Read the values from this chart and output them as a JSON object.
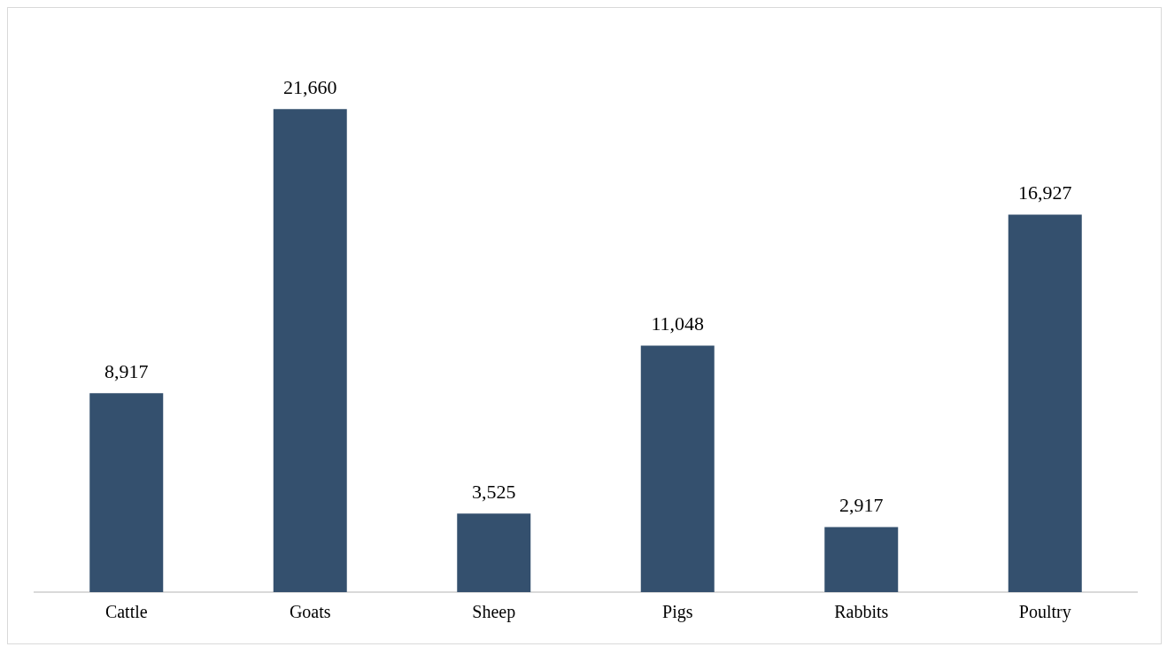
{
  "chart_data": {
    "type": "bar",
    "categories": [
      "Cattle",
      "Goats",
      "Sheep",
      "Pigs",
      "Rabbits",
      "Poultry"
    ],
    "values": [
      8917,
      21660,
      3525,
      11048,
      2917,
      16927
    ],
    "color": "#34506e",
    "value_labels": [
      "8,917",
      "21,660",
      "3,525",
      "11,048",
      "2,917",
      "16,927"
    ],
    "grid": false,
    "legend": false
  }
}
